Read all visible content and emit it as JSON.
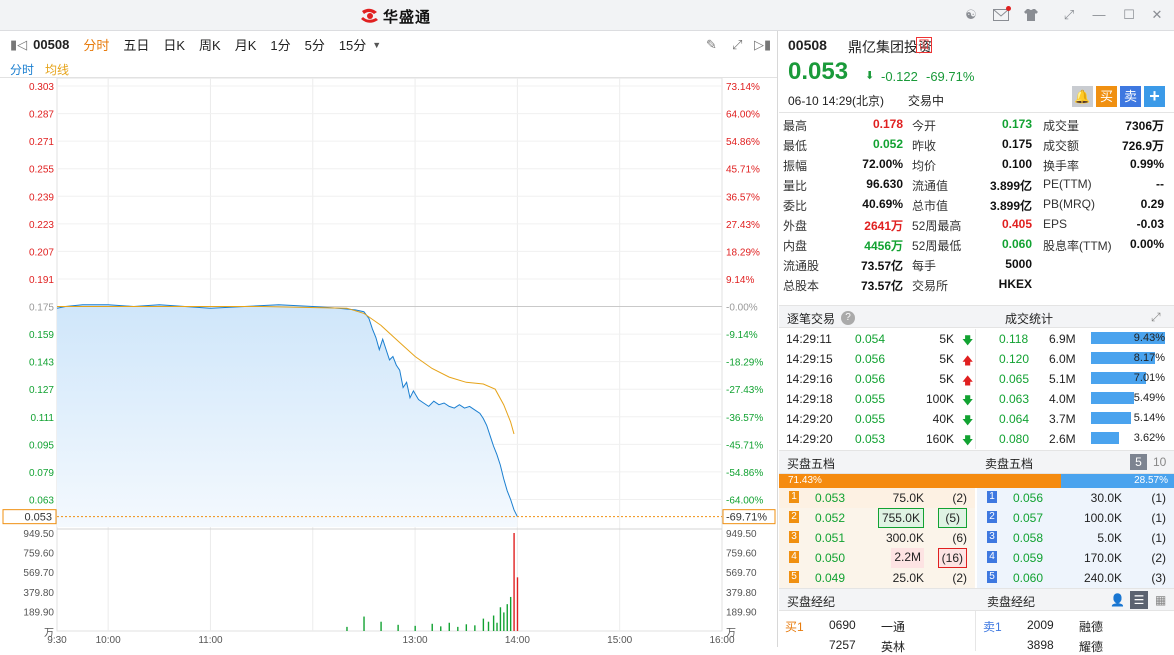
{
  "app": {
    "title": "华盛通"
  },
  "toolbar": {
    "code": "00508",
    "tabs": [
      "分时",
      "五日",
      "日K",
      "周K",
      "月K",
      "1分",
      "5分",
      "15分"
    ],
    "active_tab": "分时"
  },
  "subbar": {
    "left_label": "分时",
    "ma_label": "均线"
  },
  "chart_data": {
    "type": "line",
    "price_axis": [
      "0.303",
      "0.287",
      "0.271",
      "0.255",
      "0.239",
      "0.223",
      "0.207",
      "0.191",
      "0.175",
      "0.159",
      "0.143",
      "0.127",
      "0.111",
      "0.095",
      "0.079",
      "0.063"
    ],
    "pct_axis": [
      "73.14%",
      "64.00%",
      "54.86%",
      "45.71%",
      "36.57%",
      "27.43%",
      "18.29%",
      "9.14%",
      "-0.00%",
      "-9.14%",
      "-18.29%",
      "-27.43%",
      "-36.57%",
      "-45.71%",
      "-54.86%",
      "-64.00%"
    ],
    "last_price_label": "0.053",
    "last_pct_label": "-69.71%",
    "volume_axis": [
      "949.50",
      "759.60",
      "569.70",
      "379.80",
      "189.90",
      "万"
    ],
    "time_labels": [
      "9:30",
      "10:00",
      "11:00",
      "13:00",
      "14:00",
      "15:00",
      "16:00"
    ],
    "ylim": [
      0.047,
      0.303
    ],
    "prev_close": 0.175,
    "price_series": [
      [
        0,
        0.174
      ],
      [
        5,
        0.175
      ],
      [
        15,
        0.176
      ],
      [
        30,
        0.176
      ],
      [
        45,
        0.175
      ],
      [
        60,
        0.176
      ],
      [
        75,
        0.175
      ],
      [
        90,
        0.174
      ],
      [
        110,
        0.175
      ],
      [
        130,
        0.176
      ],
      [
        150,
        0.175
      ],
      [
        165,
        0.174
      ],
      [
        175,
        0.173
      ],
      [
        180,
        0.172
      ],
      [
        183,
        0.168
      ],
      [
        185,
        0.162
      ],
      [
        187,
        0.157
      ],
      [
        189,
        0.15
      ],
      [
        191,
        0.156
      ],
      [
        193,
        0.15
      ],
      [
        195,
        0.144
      ],
      [
        197,
        0.146
      ],
      [
        199,
        0.141
      ],
      [
        201,
        0.138
      ],
      [
        203,
        0.128
      ],
      [
        205,
        0.131
      ],
      [
        207,
        0.122
      ],
      [
        209,
        0.126
      ],
      [
        212,
        0.121
      ],
      [
        215,
        0.119
      ],
      [
        218,
        0.117
      ],
      [
        221,
        0.12
      ],
      [
        224,
        0.118
      ],
      [
        227,
        0.119
      ],
      [
        230,
        0.117
      ],
      [
        233,
        0.116
      ],
      [
        236,
        0.118
      ],
      [
        239,
        0.116
      ],
      [
        242,
        0.117
      ],
      [
        245,
        0.115
      ],
      [
        248,
        0.113
      ],
      [
        250,
        0.11
      ],
      [
        252,
        0.106
      ],
      [
        254,
        0.1
      ],
      [
        256,
        0.094
      ],
      [
        258,
        0.089
      ],
      [
        260,
        0.083
      ],
      [
        262,
        0.075
      ],
      [
        264,
        0.068
      ],
      [
        266,
        0.063
      ],
      [
        268,
        0.057
      ],
      [
        270,
        0.053
      ]
    ],
    "avg_series": [
      [
        0,
        0.175
      ],
      [
        60,
        0.175
      ],
      [
        120,
        0.175
      ],
      [
        170,
        0.174
      ],
      [
        180,
        0.171
      ],
      [
        190,
        0.164
      ],
      [
        200,
        0.155
      ],
      [
        210,
        0.146
      ],
      [
        220,
        0.139
      ],
      [
        230,
        0.134
      ],
      [
        240,
        0.131
      ],
      [
        250,
        0.13
      ],
      [
        257,
        0.127
      ],
      [
        262,
        0.118
      ],
      [
        266,
        0.108
      ],
      [
        268,
        0.101
      ]
    ],
    "volume_series": [
      [
        170,
        40
      ],
      [
        180,
        140
      ],
      [
        190,
        90
      ],
      [
        200,
        60
      ],
      [
        210,
        50
      ],
      [
        220,
        70
      ],
      [
        225,
        45
      ],
      [
        230,
        80
      ],
      [
        235,
        40
      ],
      [
        240,
        65
      ],
      [
        245,
        55
      ],
      [
        250,
        120
      ],
      [
        253,
        90
      ],
      [
        256,
        150
      ],
      [
        258,
        80
      ],
      [
        260,
        230
      ],
      [
        262,
        180
      ],
      [
        264,
        260
      ],
      [
        266,
        330
      ],
      [
        268,
        949.5
      ],
      [
        270,
        520
      ]
    ],
    "total_minutes": 390
  },
  "stock": {
    "code": "00508",
    "name": "鼎亿集团投资",
    "tag": "冚",
    "price": "0.053",
    "change": "-0.122",
    "change_pct": "-69.71%",
    "datetime": "06-10  14:29(北京)",
    "status": "交易中",
    "buy_label": "买",
    "sell_label": "卖",
    "add_label": "+"
  },
  "quote": [
    [
      {
        "k": "最高",
        "v": "0.178",
        "c": "red"
      },
      {
        "k": "今开",
        "v": "0.173",
        "c": "green"
      },
      {
        "k": "成交量",
        "v": "7306万",
        "c": "dark"
      }
    ],
    [
      {
        "k": "最低",
        "v": "0.052",
        "c": "green"
      },
      {
        "k": "昨收",
        "v": "0.175",
        "c": "dark"
      },
      {
        "k": "成交额",
        "v": "726.9万",
        "c": "dark"
      }
    ],
    [
      {
        "k": "振幅",
        "v": "72.00%",
        "c": "dark"
      },
      {
        "k": "均价",
        "v": "0.100",
        "c": "dark"
      },
      {
        "k": "换手率",
        "v": "0.99%",
        "c": "dark"
      }
    ],
    [
      {
        "k": "量比",
        "v": "96.630",
        "c": "dark"
      },
      {
        "k": "流通值",
        "v": "3.899亿",
        "c": "dark"
      },
      {
        "k": "PE(TTM)",
        "v": "--",
        "c": "dark"
      }
    ],
    [
      {
        "k": "委比",
        "v": "40.69%",
        "c": "dark"
      },
      {
        "k": "总市值",
        "v": "3.899亿",
        "c": "dark"
      },
      {
        "k": "PB(MRQ)",
        "v": "0.29",
        "c": "dark"
      }
    ],
    [
      {
        "k": "外盘",
        "v": "2641万",
        "c": "red"
      },
      {
        "k": "52周最高",
        "v": "0.405",
        "c": "red"
      },
      {
        "k": "EPS",
        "v": "-0.03",
        "c": "dark"
      }
    ],
    [
      {
        "k": "内盘",
        "v": "4456万",
        "c": "green"
      },
      {
        "k": "52周最低",
        "v": "0.060",
        "c": "green"
      },
      {
        "k": "股息率(TTM)",
        "v": "0.00%",
        "c": "dark"
      }
    ],
    [
      {
        "k": "流通股",
        "v": "73.57亿",
        "c": "dark"
      },
      {
        "k": "每手",
        "v": "5000",
        "c": "dark"
      }
    ],
    [
      {
        "k": "总股本",
        "v": "73.57亿",
        "c": "dark"
      },
      {
        "k": "交易所",
        "v": "HKEX",
        "c": "dark"
      }
    ]
  ],
  "ticks_header": {
    "left": "逐笔交易",
    "right": "成交统计"
  },
  "ticks": [
    {
      "t": "14:29:11",
      "p": "0.054",
      "v": "5K",
      "d": "down"
    },
    {
      "t": "14:29:15",
      "p": "0.056",
      "v": "5K",
      "d": "up"
    },
    {
      "t": "14:29:16",
      "p": "0.056",
      "v": "5K",
      "d": "up"
    },
    {
      "t": "14:29:18",
      "p": "0.055",
      "v": "100K",
      "d": "down"
    },
    {
      "t": "14:29:20",
      "p": "0.055",
      "v": "40K",
      "d": "down"
    },
    {
      "t": "14:29:20",
      "p": "0.053",
      "v": "160K",
      "d": "down"
    }
  ],
  "volstats": [
    {
      "p": "0.118",
      "v": "6.9M",
      "pct": "9.43%",
      "f": 0.943
    },
    {
      "p": "0.120",
      "v": "6.0M",
      "pct": "8.17%",
      "f": 0.817
    },
    {
      "p": "0.065",
      "v": "5.1M",
      "pct": "7.01%",
      "f": 0.701
    },
    {
      "p": "0.063",
      "v": "4.0M",
      "pct": "5.49%",
      "f": 0.549
    },
    {
      "p": "0.064",
      "v": "3.7M",
      "pct": "5.14%",
      "f": 0.514
    },
    {
      "p": "0.080",
      "v": "2.6M",
      "pct": "3.62%",
      "f": 0.362
    }
  ],
  "book_header": {
    "bid": "买盘五档",
    "ask": "卖盘五档",
    "lvl5": "5",
    "lvl10": "10"
  },
  "book_ratio": {
    "bid_pct": "71.43%",
    "ask_pct": "28.57%",
    "bid_frac": 0.7143
  },
  "bids": [
    {
      "n": "1",
      "p": "0.053",
      "v": "75.0K",
      "c": "(2)"
    },
    {
      "n": "2",
      "p": "0.052",
      "v": "755.0K",
      "c": "(5)"
    },
    {
      "n": "3",
      "p": "0.051",
      "v": "300.0K",
      "c": "(6)"
    },
    {
      "n": "4",
      "p": "0.050",
      "v": "2.2M",
      "c": "(16)"
    },
    {
      "n": "5",
      "p": "0.049",
      "v": "25.0K",
      "c": "(2)"
    }
  ],
  "asks": [
    {
      "n": "1",
      "p": "0.056",
      "v": "30.0K",
      "c": "(1)"
    },
    {
      "n": "2",
      "p": "0.057",
      "v": "100.0K",
      "c": "(1)"
    },
    {
      "n": "3",
      "p": "0.058",
      "v": "5.0K",
      "c": "(1)"
    },
    {
      "n": "4",
      "p": "0.059",
      "v": "170.0K",
      "c": "(2)"
    },
    {
      "n": "5",
      "p": "0.060",
      "v": "240.0K",
      "c": "(3)"
    }
  ],
  "broker_header": {
    "bid": "买盘经纪",
    "ask": "卖盘经纪"
  },
  "brokers": {
    "bid": [
      {
        "n": "买1",
        "id": "0690",
        "name": "一通"
      },
      {
        "n": "",
        "id": "7257",
        "name": "英林"
      }
    ],
    "ask": [
      {
        "n": "卖1",
        "id": "2009",
        "name": "融德"
      },
      {
        "n": "",
        "id": "3898",
        "name": "耀德"
      }
    ]
  },
  "colors": {
    "accent": "#e77b0d",
    "up": "#e02020",
    "down": "#12a232",
    "price_line": "#1b7fd0",
    "avg_line": "#e6a319"
  }
}
